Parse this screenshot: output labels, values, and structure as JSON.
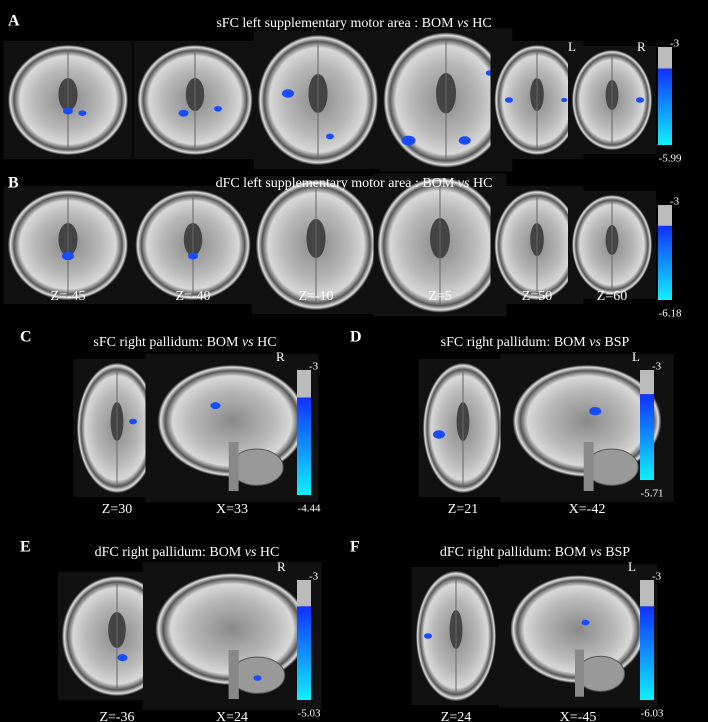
{
  "panels": [
    {
      "letter": "A",
      "title": {
        "before": "sFC left supplementary motor area : BOM ",
        "italic": "vs",
        "after": " HC"
      },
      "orientation_labels": [
        "L",
        "R"
      ],
      "colorbar": {
        "max": -3,
        "min": -5.99
      }
    },
    {
      "letter": "B",
      "title": {
        "before": "dFC left supplementary motor area : BOM ",
        "italic": "vs",
        "after": " HC"
      },
      "orientation_labels": [],
      "colorbar": {
        "max": -3,
        "min": -6.18
      },
      "slice_labels": [
        "Z=-45",
        "Z=-40",
        "Z=-10",
        "Z=5",
        "Z=50",
        "Z=60"
      ]
    },
    {
      "letter": "C",
      "title": {
        "before": "sFC right pallidum: BOM ",
        "italic": "vs",
        "after": " HC"
      },
      "orientation_labels": [
        "R"
      ],
      "colorbar": {
        "max": -3,
        "min": -4.44
      },
      "slice_labels": [
        "Z=30",
        "X=33"
      ]
    },
    {
      "letter": "D",
      "title": {
        "before": "sFC right pallidum: BOM ",
        "italic": "vs",
        "after": " BSP"
      },
      "orientation_labels": [
        "L"
      ],
      "colorbar": {
        "max": -3,
        "min": -5.71
      },
      "slice_labels": [
        "Z=21",
        "X=-42"
      ]
    },
    {
      "letter": "E",
      "title": {
        "before": "dFC right pallidum: BOM ",
        "italic": "vs",
        "after": " HC"
      },
      "orientation_labels": [
        "R"
      ],
      "colorbar": {
        "max": -3,
        "min": -5.03
      },
      "slice_labels": [
        "Z=-36",
        "X=24"
      ]
    },
    {
      "letter": "F",
      "title": {
        "before": "dFC right pallidum: BOM ",
        "italic": "vs",
        "after": " BSP"
      },
      "orientation_labels": [
        "L"
      ],
      "colorbar": {
        "max": -3,
        "min": -6.03
      },
      "slice_labels": [
        "Z=24",
        "X=-45"
      ]
    }
  ]
}
